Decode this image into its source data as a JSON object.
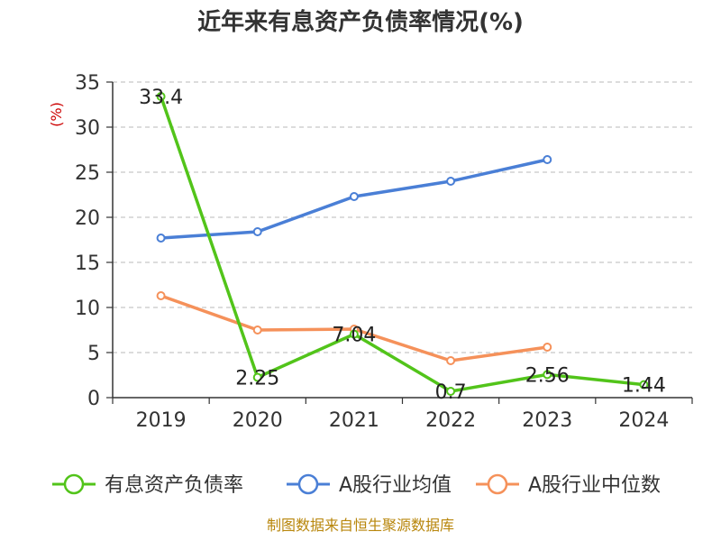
{
  "chart_data": {
    "type": "line",
    "title": "近年来有息资产负债率情况(%)",
    "y_unit": "(%)",
    "ylim": [
      0,
      35
    ],
    "yticks": [
      0,
      5,
      10,
      15,
      20,
      25,
      30,
      35
    ],
    "grid": true,
    "legend_position": "bottom",
    "categories": [
      "2019",
      "2020",
      "2021",
      "2022",
      "2023",
      "2024"
    ],
    "series": [
      {
        "name": "有息资产负债率",
        "color": "#52c41a",
        "values": [
          33.4,
          2.25,
          7.04,
          0.7,
          2.56,
          1.44
        ],
        "labels": [
          "33.4",
          "2.25",
          "7.04",
          "0.7",
          "2.56",
          "1.44"
        ]
      },
      {
        "name": "A股行业均值",
        "color": "#4a7fd6",
        "values": [
          17.7,
          18.4,
          22.3,
          24.0,
          26.4,
          null
        ]
      },
      {
        "name": "A股行业中位数",
        "color": "#f5915a",
        "values": [
          11.3,
          7.5,
          7.6,
          4.1,
          5.6,
          null
        ]
      }
    ],
    "source": "制图数据来自恒生聚源数据库"
  }
}
